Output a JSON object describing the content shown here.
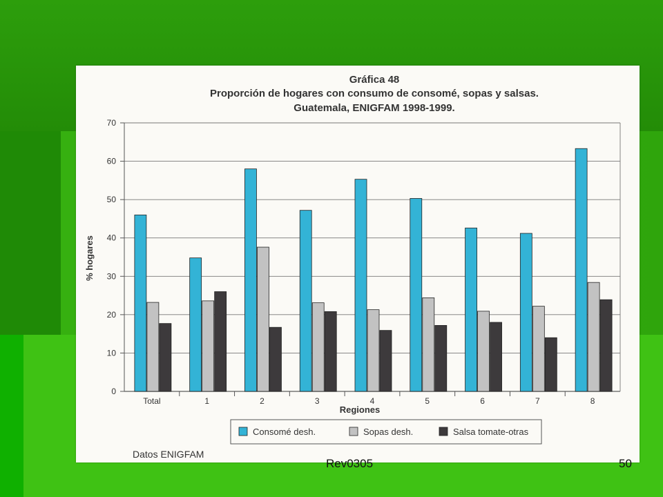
{
  "slide": {
    "footer_left": "Rev0305",
    "footer_right": "50"
  },
  "chart_data": {
    "type": "bar",
    "title": "Gráfica 48",
    "subtitle_line1": "Proporción de hogares con consumo de consomé, sopas y salsas.",
    "subtitle_line2": "Guatemala, ENIGFAM 1998-1999.",
    "xlabel": "Regiones",
    "ylabel": "% hogares",
    "ylim": [
      0,
      70
    ],
    "yticks": [
      0,
      10,
      20,
      30,
      40,
      50,
      60,
      70
    ],
    "grid": true,
    "legend_position": "bottom",
    "categories": [
      "Total",
      "1",
      "2",
      "3",
      "4",
      "5",
      "6",
      "7",
      "8"
    ],
    "series": [
      {
        "name": "Consomé desh.",
        "color": "#33b3d6",
        "values": [
          46,
          34.8,
          58,
          47.2,
          55.3,
          50.3,
          42.6,
          41.2,
          63.3
        ]
      },
      {
        "name": "Sopas desh.",
        "color": "#c2c2c2",
        "values": [
          23.2,
          23.6,
          37.6,
          23.1,
          21.3,
          24.4,
          20.9,
          22.2,
          28.4
        ]
      },
      {
        "name": "Salsa tomate-otras",
        "color": "#3d3a3c",
        "values": [
          17.7,
          26,
          16.7,
          20.8,
          15.9,
          17.2,
          18,
          14,
          23.9
        ]
      }
    ],
    "source_note": "Datos ENIGFAM"
  }
}
